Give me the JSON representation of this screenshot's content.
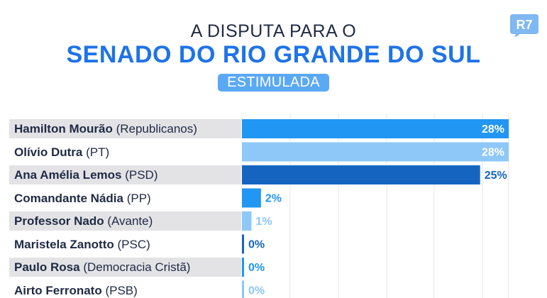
{
  "header": {
    "top_text": "A DISPUTA PARA O",
    "title": "SENADO DO RIO GRANDE DO SUL",
    "tag": "ESTIMULADA",
    "logo_text": "R7"
  },
  "colors": {
    "title_blue": "#1e73e8",
    "pill_blue": "#5aa9f5",
    "bar_mid": "#2196f3",
    "bar_light": "#8ec8f9",
    "bar_dark": "#1565c0",
    "label_dark": "#1f2a44"
  },
  "chart_data": {
    "type": "bar",
    "orientation": "horizontal",
    "unit": "%",
    "xlim": [
      0,
      28
    ],
    "grid": true,
    "items": [
      {
        "name": "Hamilton Mourão",
        "party": "(Republicanos)",
        "value": 28,
        "label": "28%",
        "color": "#2196f3"
      },
      {
        "name": "Olívio Dutra",
        "party": "(PT)",
        "value": 28,
        "label": "28%",
        "color": "#8ec8f9"
      },
      {
        "name": "Ana Amélia Lemos",
        "party": "(PSD)",
        "value": 25,
        "label": "25%",
        "color": "#1565c0"
      },
      {
        "name": "Comandante Nádia",
        "party": "(PP)",
        "value": 2,
        "label": "2%",
        "color": "#2196f3"
      },
      {
        "name": "Professor Nado",
        "party": "(Avante)",
        "value": 1,
        "label": "1%",
        "color": "#8ec8f9"
      },
      {
        "name": "Maristela Zanotto",
        "party": "(PSC)",
        "value": 0,
        "label": "0%",
        "color": "#1565c0"
      },
      {
        "name": "Paulo Rosa",
        "party": "(Democracia Cristã)",
        "value": 0,
        "label": "0%",
        "color": "#2196f3"
      },
      {
        "name": "Airto Ferronato",
        "party": "(PSB)",
        "value": 0,
        "label": "0%",
        "color": "#8ec8f9"
      }
    ]
  }
}
